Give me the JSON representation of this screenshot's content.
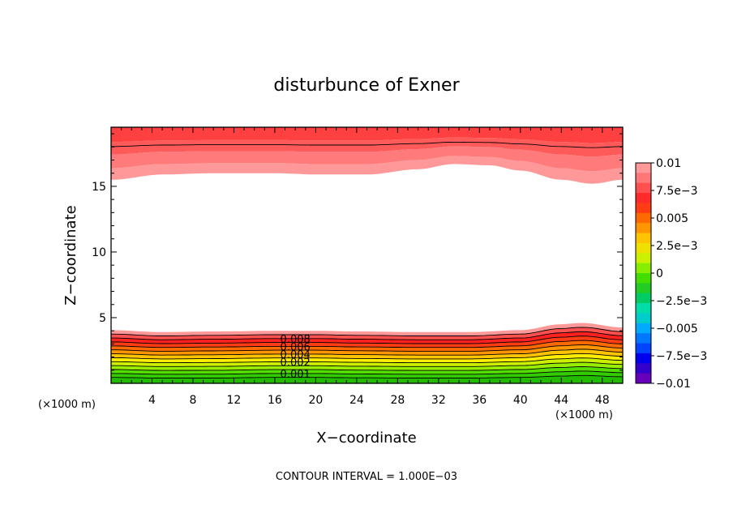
{
  "chart_data": {
    "type": "contour",
    "title": "disturbunce of Exner",
    "xlabel": "X−coordinate",
    "ylabel": "Z−coordinate",
    "x_unit_left": "(×1000 m)",
    "x_unit_right": "(×1000 m)",
    "xlim": [
      0,
      50
    ],
    "ylim": [
      0,
      19.5
    ],
    "x_ticks": [
      4,
      8,
      12,
      16,
      20,
      24,
      28,
      32,
      36,
      40,
      44,
      48
    ],
    "x_tick_labels": [
      "4",
      "8",
      "12",
      "16",
      "20",
      "24",
      "28",
      "32",
      "36",
      "40",
      "44",
      "48"
    ],
    "y_ticks": [
      5,
      10,
      15
    ],
    "y_tick_labels": [
      "5",
      "10",
      "15"
    ],
    "footer": "CONTOUR INTERVAL = 1.000E−03",
    "contour_interval": 0.001,
    "colorbar": {
      "range": [
        -0.01,
        0.01
      ],
      "tick_values": [
        0.01,
        0.0075,
        0.005,
        0.0025,
        0,
        -0.0025,
        -0.005,
        -0.0075,
        -0.01
      ],
      "tick_labels": [
        "0.01",
        "7.5e−3",
        "0.005",
        "2.5e−3",
        "0",
        "−2.5e−3",
        "−0.005",
        "−7.5e−3",
        "−0.01"
      ],
      "colors": [
        "#ff9999",
        "#ff7777",
        "#ff5050",
        "#ff2a2a",
        "#ff3c14",
        "#ff6a00",
        "#ff9600",
        "#ffc400",
        "#f0e000",
        "#ccf000",
        "#88ee00",
        "#44dd00",
        "#22cc22",
        "#00cc66",
        "#00ddaa",
        "#00cccc",
        "#00aaff",
        "#0077ff",
        "#0044ff",
        "#0000ee",
        "#3300cc",
        "#6600bb"
      ]
    },
    "contour_labels": [
      "0.008",
      "0.006",
      "0.004",
      "0.002",
      "0.001"
    ],
    "lower_profile": {
      "x": [
        0,
        5,
        10,
        16,
        20,
        24,
        30,
        35,
        40,
        44,
        46,
        50
      ],
      "z_at_0.01": [
        4.05,
        3.9,
        3.95,
        4.0,
        4.0,
        3.95,
        3.9,
        3.9,
        4.05,
        4.5,
        4.6,
        4.25
      ],
      "z_at_0.001": [
        0.45,
        0.4,
        0.4,
        0.45,
        0.45,
        0.42,
        0.4,
        0.4,
        0.45,
        0.55,
        0.6,
        0.5
      ]
    },
    "upper_profile": {
      "x": [
        0,
        5,
        10,
        16,
        20,
        25,
        30,
        33.5,
        37,
        40,
        44,
        47,
        50
      ],
      "z_at_0.01": [
        15.5,
        15.9,
        16.0,
        16.0,
        15.9,
        15.9,
        16.3,
        16.7,
        16.6,
        16.2,
        15.5,
        15.2,
        15.5
      ]
    }
  }
}
